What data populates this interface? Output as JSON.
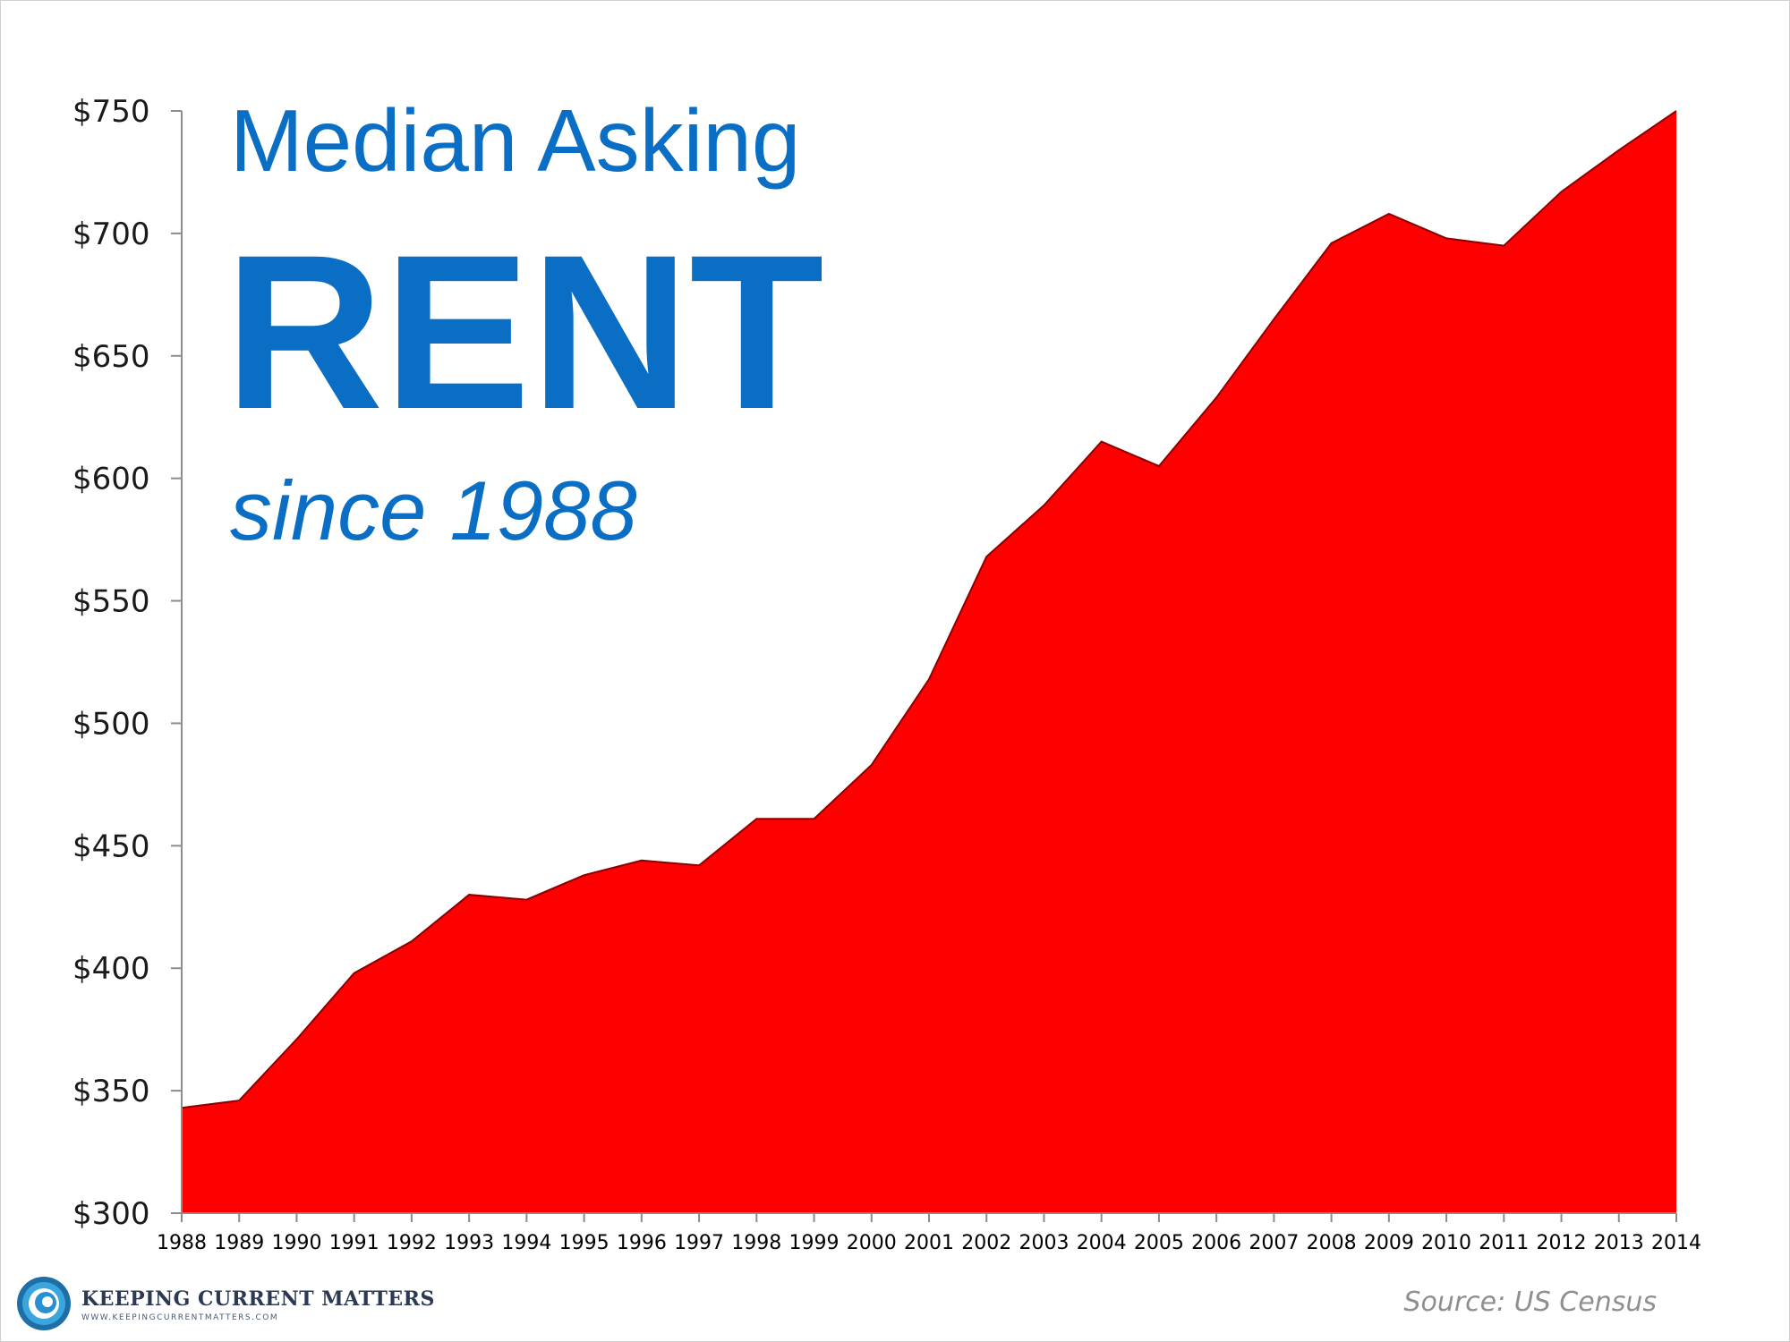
{
  "chart_data": {
    "type": "area",
    "title_lines": [
      "Median Asking",
      "RENT",
      "since 1988"
    ],
    "xlabel": "",
    "ylabel": "",
    "x": [
      "1988",
      "1989",
      "1990",
      "1991",
      "1992",
      "1993",
      "1994",
      "1995",
      "1996",
      "1997",
      "1998",
      "1999",
      "2000",
      "2001",
      "2002",
      "2003",
      "2004",
      "2005",
      "2006",
      "2007",
      "2008",
      "2009",
      "2010",
      "2011",
      "2012",
      "2013",
      "2014"
    ],
    "values": [
      343,
      346,
      371,
      398,
      411,
      430,
      428,
      438,
      444,
      442,
      461,
      461,
      483,
      518,
      568,
      589,
      615,
      605,
      633,
      665,
      696,
      708,
      698,
      695,
      717,
      734,
      758
    ],
    "ylim": [
      300,
      750
    ],
    "yticks": [
      "$300",
      "$350",
      "$400",
      "$450",
      "$500",
      "$550",
      "$600",
      "$650",
      "$700",
      "$750"
    ],
    "ytick_values": [
      300,
      350,
      400,
      450,
      500,
      550,
      600,
      650,
      700,
      750
    ],
    "fill_color": "#FF0000",
    "edge_color": "#8B0000",
    "title_color": "#0A6EC4",
    "grid": false,
    "legend": "none"
  },
  "source": "Source: US Census",
  "logo": {
    "brand": "KEEPING CURRENT MATTERS",
    "url": "WWW.KEEPINGCURRENTMATTERS.COM",
    "icon": "swirl-logo-icon"
  }
}
